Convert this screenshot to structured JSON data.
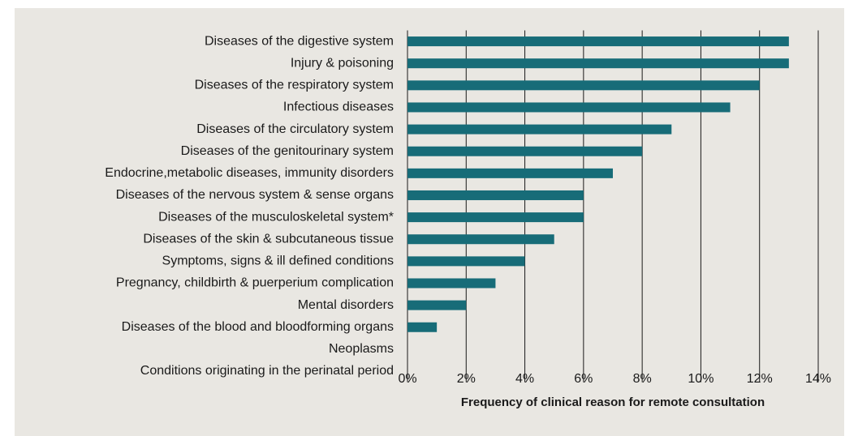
{
  "chart_data": {
    "type": "bar",
    "orientation": "horizontal",
    "x_label": "Frequency of clinical reason for remote consultation",
    "categories": [
      "Diseases of the digestive system",
      "Injury & poisoning",
      "Diseases of the respiratory system",
      "Infectious diseases",
      "Diseases of the circulatory system",
      "Diseases of the genitourinary system",
      "Endocrine,metabolic diseases, immunity disorders",
      "Diseases of the nervous system & sense organs",
      "Diseases of the musculoskeletal system*",
      "Diseases of the skin & subcutaneous tissue",
      "Symptoms, signs & ill defined conditions",
      "Pregnancy, childbirth & puerperium complication",
      "Mental disorders",
      "Diseases of the blood and bloodforming organs",
      "Neoplasms",
      "Conditions originating in the perinatal period"
    ],
    "values": [
      13,
      13,
      12,
      11,
      9,
      8,
      7,
      6,
      6,
      5,
      4,
      3,
      2,
      1,
      0,
      0
    ],
    "color": "#176c78",
    "xlim": [
      0,
      14
    ],
    "xticks": [
      {
        "value": 0,
        "label": "0%"
      },
      {
        "value": 2,
        "label": "2%"
      },
      {
        "value": 4,
        "label": "4%"
      },
      {
        "value": 6,
        "label": "6%"
      },
      {
        "value": 8,
        "label": "8%"
      },
      {
        "value": 10,
        "label": "10%"
      },
      {
        "value": 12,
        "label": "12%"
      },
      {
        "value": 14,
        "label": "14%"
      }
    ],
    "grid": true
  }
}
